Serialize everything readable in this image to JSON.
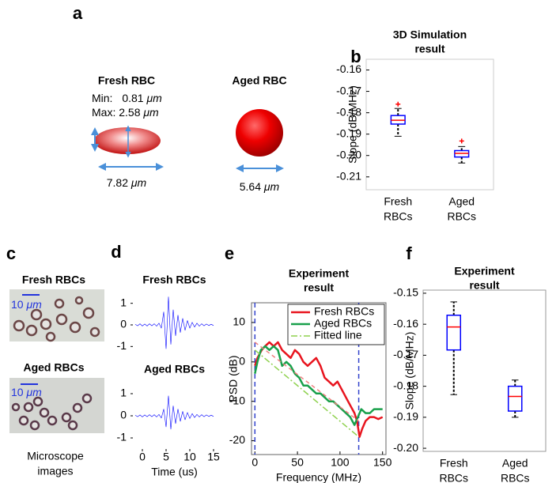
{
  "panel_labels": [
    "a",
    "b",
    "c",
    "d",
    "e",
    "f"
  ],
  "rbc_models": {
    "fresh": {
      "title": "Fresh RBC",
      "min_label": "Min:",
      "min_value": "0.81",
      "max_label": "Max:",
      "max_value": "2.58",
      "diameter": "7.82",
      "unit": "μm"
    },
    "aged": {
      "title": "Aged RBC",
      "diameter": "5.64",
      "unit": "μm"
    }
  },
  "microscope": {
    "fresh_title": "Fresh RBCs",
    "aged_title": "Aged RBCs",
    "scale_bar": "10",
    "unit": "μm",
    "caption": [
      "Microscope",
      "images"
    ]
  },
  "chart_data": [
    {
      "type": "box",
      "title": [
        "3D Simulation",
        "result"
      ],
      "y_label": "Slope (dB/MHz)",
      "categories": [
        [
          "Fresh",
          "RBCs"
        ],
        [
          "Aged",
          "RBCs"
        ]
      ],
      "boxes": [
        {
          "whislo": -0.191,
          "q1": -0.1853,
          "med": -0.1835,
          "q3": -0.1813,
          "whishi": -0.178,
          "fliers": [
            -0.176
          ]
        },
        {
          "whislo": -0.2035,
          "q1": -0.2007,
          "med": -0.199,
          "q3": -0.1977,
          "whishi": -0.1958,
          "fliers": [
            -0.1932
          ]
        }
      ],
      "box_color": "#0000ff",
      "median_color": "#ff0000",
      "whisker_color": "#000000",
      "flier_color": "#ff0000",
      "ylim": [
        -0.216,
        -0.155
      ],
      "yticks": [
        -0.16,
        -0.17,
        -0.18,
        -0.19,
        {
          "value": -0.2,
          "label": "-0.20"
        },
        -0.21
      ]
    },
    {
      "type": "line",
      "title": [
        "Fresh RBCs"
      ],
      "x": [
        -1.5,
        -1,
        -0.5,
        0,
        0.5,
        1,
        1.5,
        2,
        2.5,
        3,
        3.5,
        4,
        4.5,
        5,
        5.5,
        6,
        6.5,
        7,
        7.5,
        8,
        8.5,
        9,
        9.5,
        10,
        10.5,
        11,
        11.5,
        12,
        12.5,
        13,
        13.5,
        14,
        14.5,
        15
      ],
      "series": [
        {
          "color": "#0000ff",
          "values": [
            0.03,
            -0.04,
            0.05,
            -0.05,
            0.04,
            -0.05,
            0.05,
            -0.04,
            0.05,
            -0.06,
            0.08,
            -0.15,
            0.6,
            -1.1,
            1.3,
            -0.9,
            0.7,
            -0.5,
            0.45,
            -0.35,
            0.3,
            -0.25,
            0.2,
            -0.15,
            0.12,
            -0.1,
            0.08,
            -0.06,
            0.05,
            -0.04,
            0.04,
            -0.03,
            0.03,
            -0.03
          ]
        }
      ],
      "xlim": [
        -2,
        15.5
      ],
      "ylim": [
        -1.5,
        1.5
      ],
      "yticks": [
        -1,
        0,
        1
      ]
    },
    {
      "type": "line",
      "title": [
        "Aged RBCs"
      ],
      "x_label": "Time (us)",
      "x": [
        -1.5,
        -1,
        -0.5,
        0,
        0.5,
        1,
        1.5,
        2,
        2.5,
        3,
        3.5,
        4,
        4.5,
        5,
        5.5,
        6,
        6.5,
        7,
        7.5,
        8,
        8.5,
        9,
        9.5,
        10,
        10.5,
        11,
        11.5,
        12,
        12.5,
        13,
        13.5,
        14,
        14.5,
        15
      ],
      "series": [
        {
          "color": "#0000ff",
          "values": [
            0.03,
            -0.04,
            0.04,
            -0.05,
            0.04,
            -0.04,
            0.05,
            -0.04,
            0.05,
            -0.05,
            0.06,
            -0.1,
            0.3,
            -0.5,
            0.9,
            -0.6,
            0.45,
            -0.35,
            0.3,
            -0.25,
            0.2,
            -0.18,
            0.15,
            -0.12,
            0.1,
            -0.08,
            0.06,
            -0.05,
            0.05,
            -0.04,
            0.04,
            -0.03,
            0.03,
            -0.03
          ]
        }
      ],
      "xlim": [
        -2,
        15.5
      ],
      "ylim": [
        -1.5,
        1.5
      ],
      "xticks": [
        0,
        5,
        10,
        15
      ],
      "yticks": [
        -1,
        0,
        1
      ]
    },
    {
      "type": "line",
      "title": [
        "Experiment",
        "result"
      ],
      "x_label": "Frequency (MHz)",
      "y_label": "PSD (dB)",
      "frame": true,
      "series": [
        {
          "name": "Fresh RBCs",
          "color": "#e8141e",
          "width": 2.5,
          "x": [
            0,
            3,
            8,
            12,
            17,
            22,
            27,
            32,
            37,
            42,
            47,
            52,
            57,
            62,
            67,
            72,
            77,
            82,
            87,
            92,
            97,
            102,
            107,
            112,
            117,
            120,
            123,
            126,
            130,
            135,
            140,
            145,
            150
          ],
          "values": [
            -1,
            1,
            3,
            4,
            5,
            4,
            5,
            3,
            2,
            1,
            3,
            2,
            0,
            -1,
            0,
            1,
            -1,
            -4,
            -5,
            -6,
            -5,
            -7,
            -9,
            -11,
            -13,
            -15,
            -19,
            -17,
            -15,
            -14,
            -14,
            -14.5,
            -14
          ]
        },
        {
          "name": "Aged RBCs",
          "color": "#19a04b",
          "width": 2.5,
          "x": [
            0,
            3,
            7,
            12,
            17,
            22,
            27,
            32,
            37,
            42,
            47,
            52,
            57,
            62,
            67,
            72,
            77,
            82,
            87,
            92,
            97,
            102,
            107,
            112,
            117,
            121,
            125,
            130,
            135,
            140,
            145,
            150
          ],
          "values": [
            -3,
            0,
            3,
            4,
            3,
            4,
            3,
            -1,
            0,
            -1,
            -3,
            -4,
            -6,
            -6,
            -7,
            -8,
            -8,
            -9,
            -10,
            -10,
            -11,
            -12,
            -13,
            -14,
            -16,
            -14,
            -12,
            -13,
            -13,
            -12,
            -12,
            -12
          ]
        },
        {
          "color": "#f08080",
          "width": 1.5,
          "linestyle": "dashed",
          "x": [
            0,
            122
          ],
          "values": [
            5,
            -15
          ]
        },
        {
          "name": "Fitted line",
          "color": "#8fd14f",
          "width": 1.5,
          "linestyle": "dashdot",
          "x": [
            0,
            122
          ],
          "values": [
            3,
            -19
          ]
        }
      ],
      "vlines": [
        0,
        122
      ],
      "vline_color": "#3344cc",
      "xlim": [
        -4,
        154
      ],
      "ylim": [
        -23.5,
        15
      ],
      "xticks": [
        0,
        50,
        100,
        150
      ],
      "yticks": [
        -20,
        -10,
        0,
        10
      ],
      "legend": "upper right"
    },
    {
      "type": "box",
      "title": [
        "Experiment",
        "result"
      ],
      "y_label": "Slope (dB/MHz)",
      "categories": [
        [
          "Fresh",
          "RBCs"
        ],
        [
          "Aged",
          "RBCs"
        ]
      ],
      "boxes": [
        {
          "whislo": -0.1827,
          "q1": -0.1683,
          "med": -0.1609,
          "q3": -0.1571,
          "whishi": -0.1528
        },
        {
          "whislo": -0.19,
          "q1": -0.188,
          "med": -0.1833,
          "q3": -0.18,
          "whishi": -0.178
        }
      ],
      "box_color": "#0000ff",
      "median_color": "#ff0000",
      "whisker_color": "#000000",
      "ylim": [
        -0.201,
        -0.149
      ],
      "yticks": [
        -0.15,
        -0.16,
        -0.17,
        -0.18,
        -0.19,
        {
          "value": -0.2,
          "label": "-0.20"
        }
      ]
    }
  ]
}
